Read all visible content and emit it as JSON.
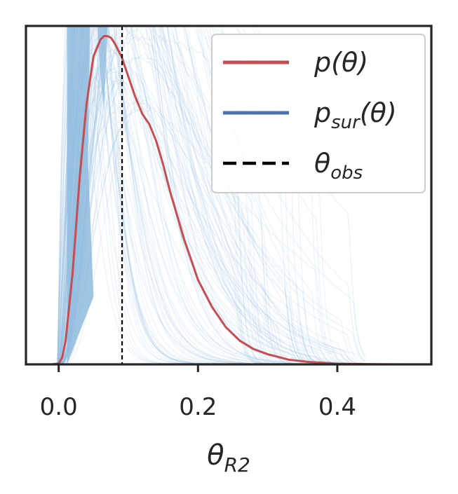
{
  "chart_data": {
    "type": "line",
    "title": "",
    "xlabel": "θ",
    "xlabel_sub": "R2",
    "ylabel": "",
    "xlim": [
      -0.047,
      0.535
    ],
    "ylim": [
      0,
      1.0
    ],
    "x_ticks": [
      {
        "value": 0.0,
        "label": "0.0"
      },
      {
        "value": 0.2,
        "label": "0.2"
      },
      {
        "value": 0.4,
        "label": "0.4"
      }
    ],
    "y_ticks_visible": false,
    "grid": false,
    "legend_position": "top-right",
    "legend": [
      {
        "kind": "line",
        "color": "#c44e52",
        "text_main": "p(θ)",
        "text_sub": ""
      },
      {
        "kind": "line",
        "color": "#4c72b0",
        "text_main": "p",
        "text_sub": "sur",
        "text_after": "(θ)"
      },
      {
        "kind": "dashed",
        "color": "#000000",
        "text_main": "θ",
        "text_sub": "obs"
      }
    ],
    "observed": {
      "x": 0.091,
      "color": "#000000",
      "style": "dashed"
    },
    "posterior": {
      "name": "p(θ)",
      "color": "#c44e52",
      "x": [
        -0.01,
        0.0,
        0.005,
        0.01,
        0.02,
        0.03,
        0.04,
        0.05,
        0.06,
        0.065,
        0.07,
        0.075,
        0.08,
        0.09,
        0.1,
        0.11,
        0.12,
        0.13,
        0.14,
        0.15,
        0.16,
        0.17,
        0.18,
        0.19,
        0.2,
        0.22,
        0.24,
        0.26,
        0.28,
        0.3,
        0.33,
        0.36,
        0.4,
        0.45,
        0.5
      ],
      "y": [
        0.0,
        0.003,
        0.02,
        0.07,
        0.27,
        0.55,
        0.77,
        0.91,
        0.96,
        0.97,
        0.97,
        0.965,
        0.95,
        0.91,
        0.85,
        0.79,
        0.74,
        0.71,
        0.66,
        0.59,
        0.51,
        0.44,
        0.37,
        0.31,
        0.25,
        0.17,
        0.11,
        0.07,
        0.045,
        0.03,
        0.014,
        0.007,
        0.002,
        0.0005,
        0.0
      ]
    },
    "surrogate": {
      "name": "p_sur(θ)",
      "color": "#8fbbde",
      "legend_color": "#4c72b0",
      "draws": 120,
      "dense_band_x": [
        0.012,
        0.042,
        0.045,
        0.05,
        0.055,
        0.06,
        0.065,
        0.07
      ],
      "note": "many overlapping translucent surrogate density draws"
    }
  }
}
